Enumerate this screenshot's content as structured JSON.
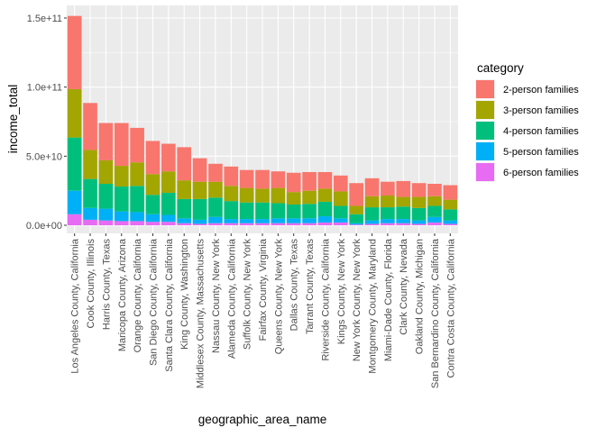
{
  "chart_data": {
    "type": "bar",
    "stacked": true,
    "xlabel": "geographic_area_name",
    "ylabel": "income_total",
    "ylim": [
      0,
      155000000000
    ],
    "yticks": [
      {
        "value": 0,
        "label": "0.0e+00"
      },
      {
        "value": 50000000000,
        "label": "5.0e+10"
      },
      {
        "value": 100000000000,
        "label": "1.0e+11"
      },
      {
        "value": 150000000000,
        "label": "1.5e+11"
      }
    ],
    "grid": true,
    "legend": {
      "title": "category",
      "position": "right"
    },
    "categories": [
      "Los Angeles County, California",
      "Cook County, Illinois",
      "Harris County, Texas",
      "Maricopa County, Arizona",
      "Orange County, California",
      "San Diego County, California",
      "Santa Clara County, California",
      "King County, Washington",
      "Middlesex County, Massachusetts",
      "Nassau County, New York",
      "Alameda County, California",
      "Suffolk County, New York",
      "Fairfax County, Virginia",
      "Queens County, New York",
      "Dallas County, Texas",
      "Tarrant County, Texas",
      "Riverside County, California",
      "Kings County, New York",
      "New York County, New York",
      "Montgomery County, Maryland",
      "Miami-Dade County, Florida",
      "Clark County, Nevada",
      "Oakland County, Michigan",
      "San Bernardino County, California",
      "Contra Costa County, California"
    ],
    "series": [
      {
        "name": "2-person families",
        "color": "#F8766D",
        "values": [
          53000000000,
          34000000000,
          27000000000,
          31000000000,
          25000000000,
          24000000000,
          20000000000,
          24000000000,
          17000000000,
          13000000000,
          14000000000,
          13000000000,
          13500000000,
          12000000000,
          14000000000,
          13500000000,
          12000000000,
          11500000000,
          16500000000,
          13000000000,
          10000000000,
          11500000000,
          10000000000,
          9000000000,
          10500000000
        ]
      },
      {
        "name": "3-person families",
        "color": "#A3A500",
        "values": [
          35000000000,
          21000000000,
          17000000000,
          15000000000,
          17000000000,
          15000000000,
          15500000000,
          13500000000,
          12500000000,
          11500000000,
          11000000000,
          10500000000,
          10000000000,
          11000000000,
          9000000000,
          9500000000,
          9500000000,
          10500000000,
          6000000000,
          8000000000,
          8500000000,
          7000000000,
          8000000000,
          7000000000,
          7000000000
        ]
      },
      {
        "name": "4-person families",
        "color": "#00BF7D",
        "values": [
          38500000000,
          21000000000,
          18000000000,
          18000000000,
          19000000000,
          14000000000,
          16000000000,
          14000000000,
          15000000000,
          14000000000,
          13000000000,
          12000000000,
          12000000000,
          11000000000,
          10000000000,
          10500000000,
          10500000000,
          9000000000,
          6500000000,
          9500000000,
          8500000000,
          9000000000,
          9000000000,
          8000000000,
          8000000000
        ]
      },
      {
        "name": "5-person families",
        "color": "#00B0F6",
        "values": [
          17000000000,
          8500000000,
          8500000000,
          7000000000,
          6500000000,
          5500000000,
          5000000000,
          3500000000,
          3000000000,
          4500000000,
          3000000000,
          3000000000,
          3000000000,
          3500000000,
          3500000000,
          3500000000,
          4500000000,
          3000000000,
          1000000000,
          2500000000,
          3000000000,
          3000000000,
          2500000000,
          4000000000,
          2500000000
        ]
      },
      {
        "name": "6-person families",
        "color": "#E76BF3",
        "values": [
          8000000000,
          4000000000,
          3500000000,
          3000000000,
          3000000000,
          2500000000,
          2500000000,
          1500000000,
          1000000000,
          1500000000,
          1500000000,
          1500000000,
          1500000000,
          1500000000,
          1500000000,
          1500000000,
          2000000000,
          2000000000,
          500000000,
          1000000000,
          1500000000,
          1500000000,
          1000000000,
          2000000000,
          1000000000
        ]
      }
    ]
  }
}
